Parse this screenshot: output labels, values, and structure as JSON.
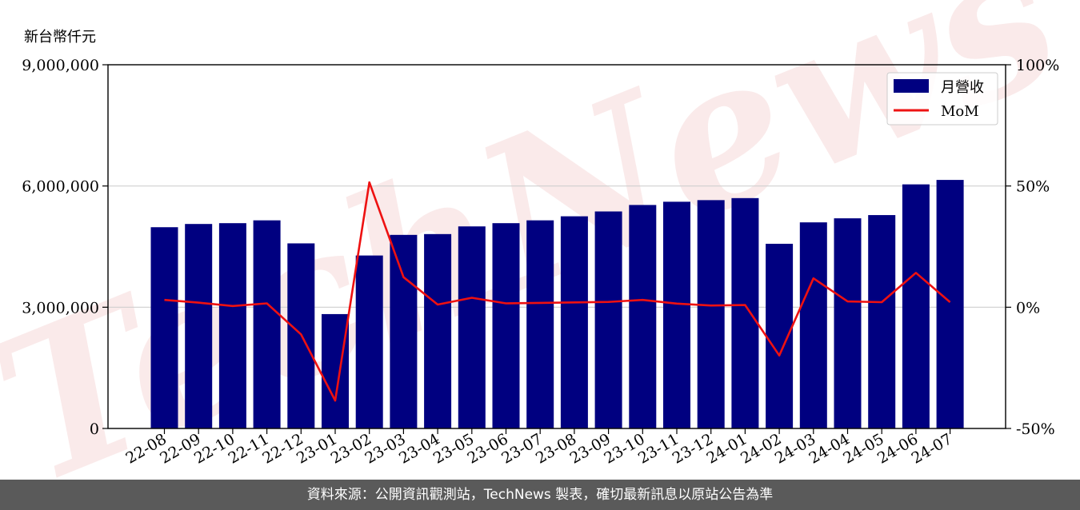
{
  "chart_data": {
    "type": "bar",
    "unit_label": "新台幣仟元",
    "categories": [
      "22-08",
      "22-09",
      "22-10",
      "22-11",
      "22-12",
      "23-01",
      "23-02",
      "23-03",
      "23-04",
      "23-05",
      "23-06",
      "23-07",
      "23-08",
      "23-09",
      "23-10",
      "23-11",
      "23-12",
      "24-01",
      "24-02",
      "24-03",
      "24-04",
      "24-05",
      "24-06",
      "24-07"
    ],
    "series": [
      {
        "name": "月營收",
        "type": "bar",
        "axis": "left",
        "color": "#000080",
        "values": [
          4980000,
          5060000,
          5080000,
          5150000,
          4580000,
          2830000,
          4280000,
          4790000,
          4810000,
          5000000,
          5080000,
          5150000,
          5250000,
          5370000,
          5530000,
          5610000,
          5650000,
          5700000,
          4570000,
          5100000,
          5200000,
          5280000,
          6040000,
          6150000
        ]
      },
      {
        "name": "MoM",
        "type": "line",
        "axis": "right",
        "color": "#ee1111",
        "values": [
          3.0,
          1.9,
          0.5,
          1.6,
          -11.2,
          -38.5,
          51.5,
          12.4,
          1.1,
          3.9,
          1.6,
          1.8,
          2.0,
          2.2,
          3.0,
          1.5,
          0.7,
          0.9,
          -19.9,
          11.9,
          2.4,
          2.1,
          14.2,
          2.1
        ]
      }
    ],
    "y_left": {
      "range": [
        0,
        9000000
      ],
      "ticks": [
        "0",
        "3,000,000",
        "6,000,000",
        "9,000,000"
      ],
      "tick_values": [
        0,
        3000000,
        6000000,
        9000000
      ]
    },
    "y_right": {
      "range": [
        -50,
        100
      ],
      "ticks": [
        "-50%",
        "0%",
        "50%",
        "100%"
      ],
      "tick_values": [
        -50,
        0,
        50,
        100
      ]
    },
    "grid": "horizontal",
    "legend": {
      "position": "top-right"
    }
  },
  "watermark": "TechNews",
  "footer": {
    "text": "資料來源：公開資訊觀測站，TechNews 製表，確切最新訊息以原站公告為準"
  }
}
